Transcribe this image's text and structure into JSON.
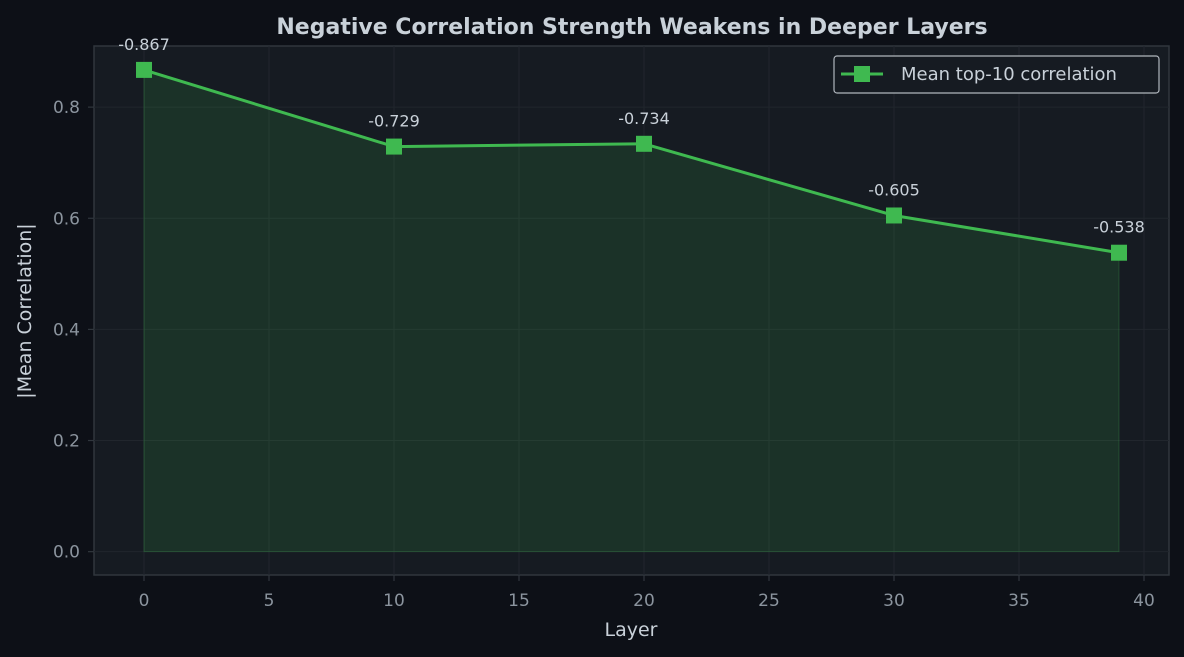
{
  "colors": {
    "background": "#0d1017",
    "plot_background": "#161b22",
    "line": "#3fb950",
    "grid": "#21262d",
    "text": "#c9d1d9",
    "tick_text": "#8b949e"
  },
  "chart_data": {
    "type": "line",
    "title": "Negative Correlation Strength Weakens in Deeper Layers",
    "xlabel": "Layer",
    "ylabel": "|Mean Correlation|",
    "xlim": [
      -2,
      41
    ],
    "ylim": [
      -0.042,
      0.91
    ],
    "x_ticks": [
      0,
      5,
      10,
      15,
      20,
      25,
      30,
      35,
      40
    ],
    "y_ticks": [
      0.0,
      0.2,
      0.4,
      0.6,
      0.8
    ],
    "x_tick_labels": [
      "0",
      "5",
      "10",
      "15",
      "20",
      "25",
      "30",
      "35",
      "40"
    ],
    "y_tick_labels": [
      "0.0",
      "0.2",
      "0.4",
      "0.6",
      "0.8"
    ],
    "grid": true,
    "legend_position": "top-right",
    "fill_under_line": true,
    "marker": "square",
    "series": [
      {
        "name": "Mean top-10 correlation",
        "x": [
          0,
          10,
          20,
          30,
          39
        ],
        "y": [
          0.867,
          0.729,
          0.734,
          0.605,
          0.538
        ],
        "labels": [
          "-0.867",
          "-0.729",
          "-0.734",
          "-0.605",
          "-0.538"
        ]
      }
    ]
  }
}
